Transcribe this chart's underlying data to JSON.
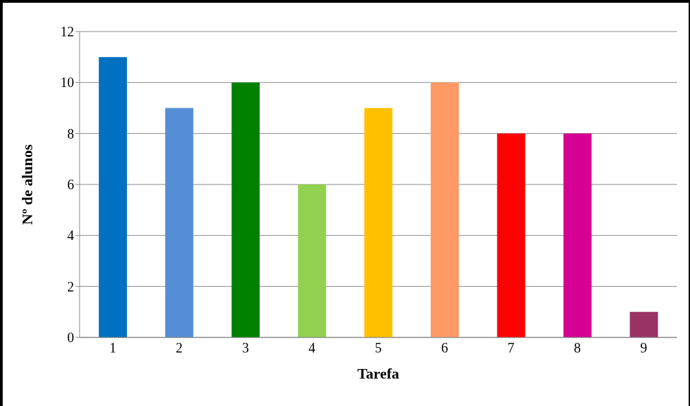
{
  "chart_data": {
    "type": "bar",
    "xlabel": "Tarefa",
    "ylabel": "Nº de alunos",
    "categories": [
      "1",
      "2",
      "3",
      "4",
      "5",
      "6",
      "7",
      "8",
      "9"
    ],
    "values": [
      11,
      9,
      10,
      6,
      9,
      10,
      8,
      8,
      1
    ],
    "colors": [
      "#0070c0",
      "#558ed5",
      "#008000",
      "#92d050",
      "#ffc000",
      "#ff9966",
      "#ff0000",
      "#d60093",
      "#993366"
    ],
    "ylim": [
      0,
      12
    ],
    "yticks": [
      0,
      2,
      4,
      6,
      8,
      10,
      12
    ],
    "grid": "y"
  }
}
